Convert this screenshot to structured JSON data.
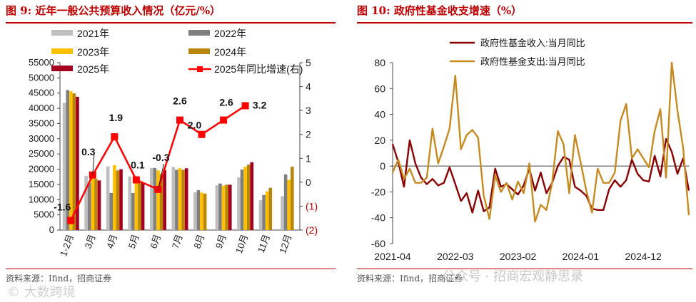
{
  "left": {
    "title": "图 9:  近年一般公共预算收入情况（亿元/%）",
    "source": "资料来源：Ifind，招商证券",
    "chart_data": {
      "type": "bar",
      "title": "近年一般公共预算收入情况（亿元/%）",
      "categories": [
        "1-2月",
        "3月",
        "4月",
        "5月",
        "6月",
        "7月",
        "8月",
        "9月",
        "10月",
        "11月",
        "12月"
      ],
      "ylim": [
        0,
        55000
      ],
      "yticks": [
        "0",
        "5000",
        "10000",
        "15000",
        "20000",
        "25000",
        "30000",
        "35000",
        "40000",
        "45000",
        "50000",
        "55000"
      ],
      "y2lim": [
        -2,
        5
      ],
      "y2ticks": [
        "(2)",
        "(1)",
        "0",
        "1",
        "2",
        "3",
        "4",
        "5"
      ],
      "series": [
        {
          "name": "2021年",
          "color": "#bfbfbf",
          "values": [
            41800,
            17800,
            20900,
            17600,
            20400,
            20700,
            12400,
            14700,
            17300,
            9800,
            11100
          ]
        },
        {
          "name": "2022年",
          "color": "#7f7f7f",
          "values": [
            46000,
            15600,
            12200,
            12200,
            20400,
            19800,
            13100,
            15300,
            19900,
            11500,
            18300
          ]
        },
        {
          "name": "2023年",
          "color": "#ffc000",
          "values": [
            45600,
            17800,
            21300,
            16200,
            19600,
            20300,
            12300,
            14600,
            20800,
            12700,
            16500
          ]
        },
        {
          "name": "2024年",
          "color": "#b8860b",
          "values": [
            44900,
            16800,
            19600,
            15500,
            18400,
            19800,
            12000,
            14900,
            21500,
            13900,
            20800
          ]
        },
        {
          "name": "2025年",
          "color": "#a50021",
          "values": [
            43800,
            16300,
            20000,
            15600,
            19700,
            20300,
            null,
            14900,
            22300,
            null,
            null
          ]
        }
      ],
      "line": {
        "name": "2025年同比增速(右)",
        "color": "#ff0000",
        "values": [
          -1.6,
          0.3,
          1.9,
          0.1,
          -0.3,
          2.6,
          2.0,
          2.6,
          3.2,
          null,
          null
        ],
        "labels": [
          "-1.6",
          "0.3",
          "1.9",
          "0.1",
          "-0.3",
          "2.6",
          "2.0",
          "2.6",
          "3.2",
          "",
          ""
        ]
      }
    }
  },
  "right": {
    "title": "图 10:  政府性基金收支增速（%）",
    "source": "资料来源：Ifind，招商证券",
    "chart_data": {
      "type": "line",
      "title": "政府性基金收支增速（%）",
      "ylim": [
        -60,
        80
      ],
      "yticks": [
        "-60",
        "-40",
        "-20",
        "0",
        "20",
        "40",
        "60",
        "80"
      ],
      "xticks": [
        "2021-04",
        "2022-03",
        "2023-02",
        "2024-01",
        "2024-12"
      ],
      "xtick_index": [
        0,
        11,
        22,
        33,
        44
      ],
      "series": [
        {
          "name": "政府性基金收入:当月同比",
          "color": "#8b0000",
          "values": [
            17,
            3,
            -16,
            20,
            2,
            -9,
            -14,
            -10,
            -15,
            -13,
            -1,
            -14,
            -27,
            -21,
            -36,
            -19,
            -35,
            -32,
            -2,
            -16,
            -14,
            -18,
            -22,
            -15,
            -2,
            -19,
            -5,
            -21,
            -13,
            0,
            7,
            5,
            -16,
            -19,
            -23,
            -33,
            -34,
            -34,
            -18,
            -11,
            -16,
            -11,
            5,
            -6,
            -11,
            -12,
            8,
            -8,
            21,
            11,
            -6,
            6,
            -19
          ]
        },
        {
          "name": "政府性基金支出:当月同比",
          "color": "#c78a1e",
          "values": [
            -5,
            5,
            -10,
            -2,
            -13,
            -13,
            -9,
            29,
            2,
            15,
            29,
            70,
            13,
            24,
            28,
            22,
            -23,
            -41,
            -7,
            -20,
            -13,
            -26,
            -12,
            -21,
            2,
            -43,
            -30,
            -34,
            -13,
            27,
            17,
            -21,
            24,
            3,
            -19,
            -36,
            -2,
            -13,
            -13,
            -5,
            35,
            48,
            6,
            13,
            6,
            -1,
            27,
            44,
            -9,
            80,
            43,
            14,
            -38
          ]
        }
      ]
    }
  },
  "watermarks": {
    "left": "© 大数跨境",
    "right": "公众号 · 招商宏观静思录"
  }
}
